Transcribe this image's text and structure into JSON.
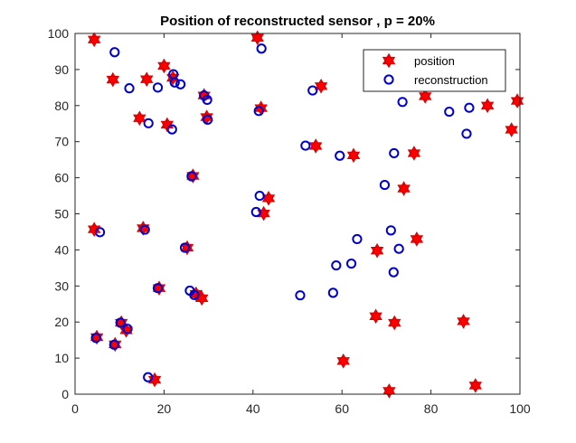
{
  "chart_data": {
    "type": "scatter",
    "title": "Position of reconstructed sensor , p = 20%",
    "xlabel": "",
    "ylabel": "",
    "xlim": [
      0,
      100
    ],
    "ylim": [
      0,
      100
    ],
    "xticks": [
      0,
      20,
      40,
      60,
      80,
      100
    ],
    "yticks": [
      0,
      10,
      20,
      30,
      40,
      50,
      60,
      70,
      80,
      90,
      100
    ],
    "grid": false,
    "legend_position": "top-right",
    "series": [
      {
        "name": "position",
        "marker": "hexagram-filled",
        "color": "#ff0000",
        "edge_color": "#cc0000",
        "points": [
          [
            4.3,
            98.3
          ],
          [
            4.3,
            45.7
          ],
          [
            4.9,
            15.8
          ],
          [
            8.5,
            87.2
          ],
          [
            9.0,
            13.8
          ],
          [
            10.4,
            19.8
          ],
          [
            11.5,
            17.7
          ],
          [
            14.5,
            76.5
          ],
          [
            15.3,
            46.0
          ],
          [
            16.1,
            87.3
          ],
          [
            17.9,
            4.0
          ],
          [
            18.9,
            29.4
          ],
          [
            20.0,
            91.0
          ],
          [
            20.7,
            74.7
          ],
          [
            22.0,
            87.7
          ],
          [
            25.2,
            40.6
          ],
          [
            26.5,
            60.5
          ],
          [
            27.2,
            27.8
          ],
          [
            28.5,
            26.6
          ],
          [
            29.0,
            82.8
          ],
          [
            29.6,
            76.8
          ],
          [
            41.0,
            98.8
          ],
          [
            41.8,
            79.3
          ],
          [
            42.4,
            50.1
          ],
          [
            43.5,
            54.3
          ],
          [
            54.1,
            68.8
          ],
          [
            55.3,
            85.4
          ],
          [
            60.3,
            9.2
          ],
          [
            62.6,
            66.2
          ],
          [
            67.6,
            21.6
          ],
          [
            67.9,
            39.8
          ],
          [
            70.6,
            0.9
          ],
          [
            71.8,
            19.8
          ],
          [
            73.9,
            57.0
          ],
          [
            76.2,
            66.8
          ],
          [
            76.8,
            43.0
          ],
          [
            78.7,
            82.6
          ],
          [
            87.3,
            20.2
          ],
          [
            90.0,
            2.4
          ],
          [
            92.7,
            80.0
          ],
          [
            98.1,
            73.3
          ],
          [
            99.4,
            81.3
          ]
        ]
      },
      {
        "name": "reconstruction",
        "marker": "circle-open",
        "color": "#0000cc",
        "points": [
          [
            4.7,
            15.6
          ],
          [
            5.6,
            44.9
          ],
          [
            8.8,
            13.7
          ],
          [
            8.9,
            94.8
          ],
          [
            10.2,
            19.8
          ],
          [
            11.8,
            18.1
          ],
          [
            12.2,
            84.8
          ],
          [
            15.7,
            45.6
          ],
          [
            16.4,
            4.7
          ],
          [
            16.5,
            75.1
          ],
          [
            18.6,
            85.0
          ],
          [
            18.6,
            29.4
          ],
          [
            21.8,
            73.4
          ],
          [
            22.1,
            88.7
          ],
          [
            22.4,
            86.4
          ],
          [
            23.7,
            85.9
          ],
          [
            24.7,
            40.6
          ],
          [
            25.8,
            28.7
          ],
          [
            26.2,
            60.4
          ],
          [
            26.8,
            27.5
          ],
          [
            29.0,
            82.8
          ],
          [
            29.7,
            81.6
          ],
          [
            29.8,
            76.1
          ],
          [
            40.7,
            50.5
          ],
          [
            41.3,
            78.5
          ],
          [
            41.5,
            55.0
          ],
          [
            41.9,
            95.8
          ],
          [
            50.6,
            27.4
          ],
          [
            51.8,
            68.9
          ],
          [
            53.4,
            84.2
          ],
          [
            58.0,
            28.1
          ],
          [
            58.7,
            35.7
          ],
          [
            59.5,
            66.1
          ],
          [
            62.1,
            36.2
          ],
          [
            63.4,
            43.0
          ],
          [
            69.6,
            58.0
          ],
          [
            71.0,
            45.4
          ],
          [
            71.6,
            33.8
          ],
          [
            71.7,
            66.8
          ],
          [
            72.8,
            40.3
          ],
          [
            73.6,
            81.0
          ],
          [
            84.1,
            78.3
          ],
          [
            88.0,
            72.2
          ],
          [
            88.6,
            79.4
          ]
        ]
      }
    ]
  }
}
